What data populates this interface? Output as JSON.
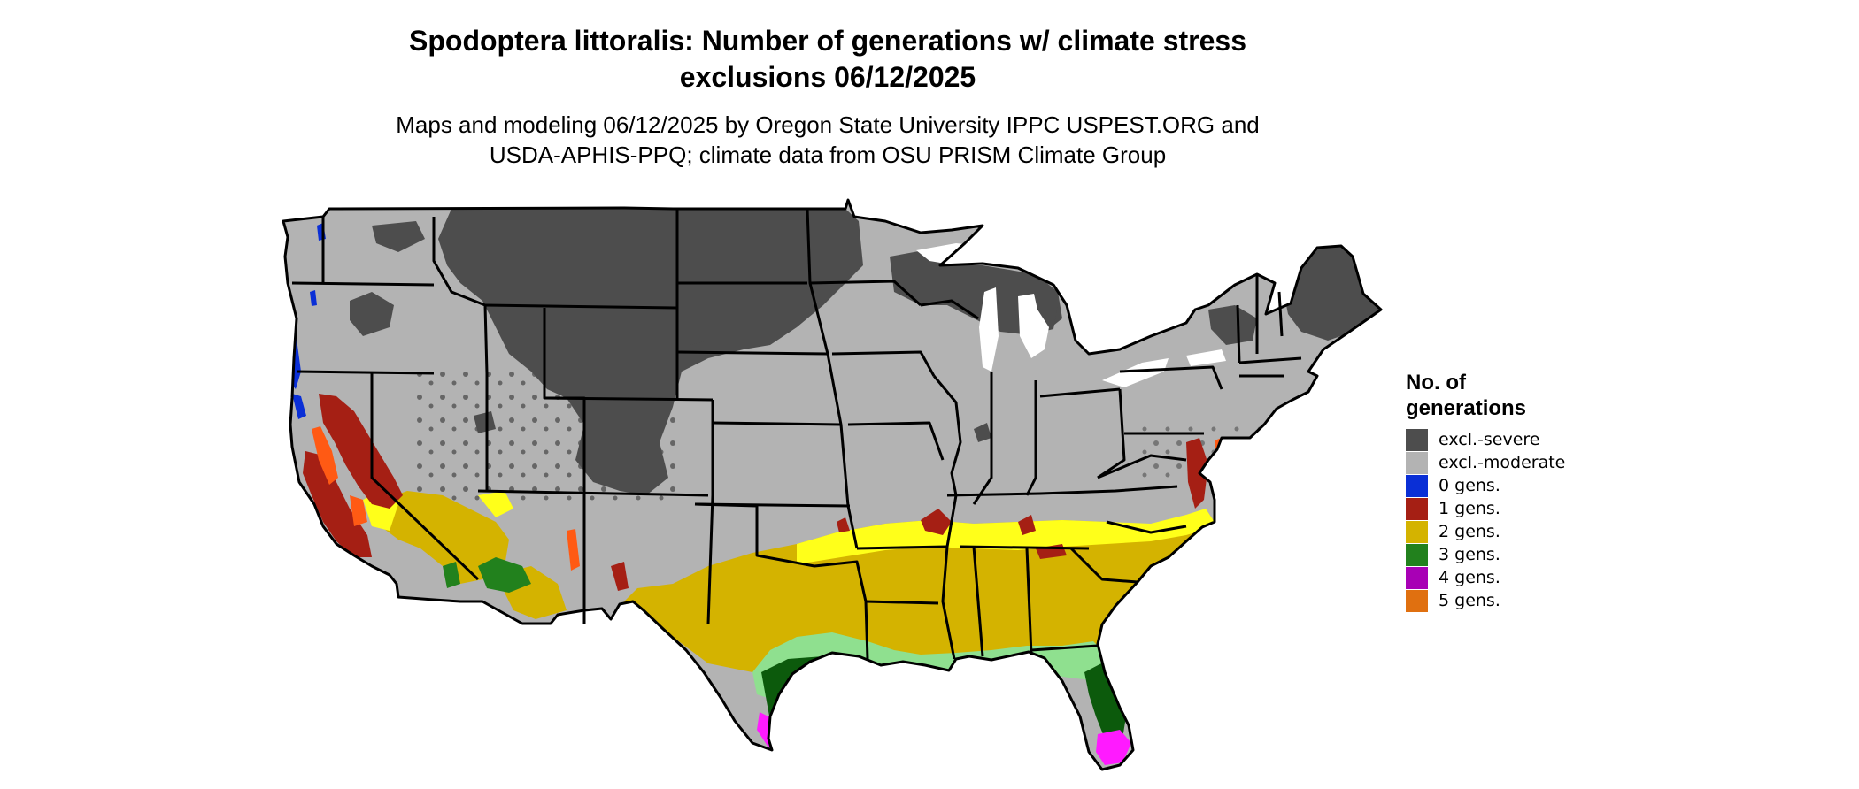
{
  "title_line1": "Spodoptera littoralis: Number of generations w/ climate stress",
  "title_line2": "exclusions 06/12/2025",
  "subtitle_line1": "Maps and modeling 06/12/2025 by Oregon State University IPPC USPEST.ORG and",
  "subtitle_line2": "USDA-APHIS-PPQ; climate data from OSU PRISM Climate Group",
  "legend": {
    "title_line1": "No. of",
    "title_line2": "generations",
    "items": [
      {
        "label": "excl.-severe",
        "color": "#4d4d4d"
      },
      {
        "label": "excl.-moderate",
        "color": "#b3b3b3"
      },
      {
        "label": "0 gens.",
        "color": "#0a2fd6"
      },
      {
        "label": "1 gens.",
        "color": "#a51f14"
      },
      {
        "label": "2 gens.",
        "color": "#d4b300"
      },
      {
        "label": "3 gens.",
        "color": "#22811d"
      },
      {
        "label": "4 gens.",
        "color": "#a800b5"
      },
      {
        "label": "5 gens.",
        "color": "#e07010"
      }
    ]
  },
  "map_colors": {
    "severe": "#4d4d4d",
    "moderate": "#b3b3b3",
    "zero": "#0a2fd6",
    "one": "#a51f14",
    "two": "#d4b300",
    "two_light": "#ffff1a",
    "three": "#22811d",
    "three_light": "#8fe08f",
    "three_dark": "#0c5a0c",
    "four": "#ff1aff",
    "five": "#ff5a14",
    "state_border": "#000000",
    "water": "#ffffff"
  }
}
